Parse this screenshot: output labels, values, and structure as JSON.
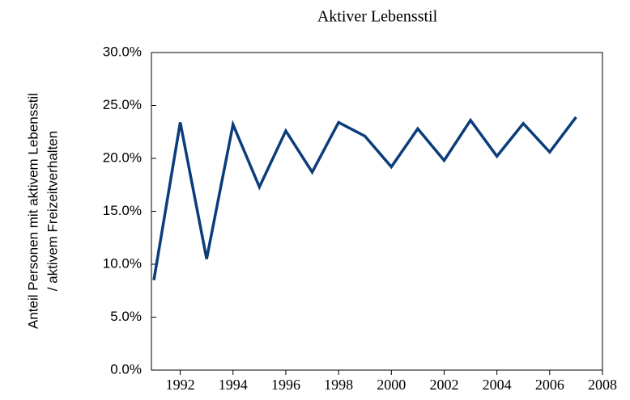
{
  "chart_data": {
    "type": "line",
    "title": "Aktiver Lebensstil",
    "ylabel": [
      "Anteil Personen mit aktivem Lebensstil",
      "/ aktivem Freizeitverhalten"
    ],
    "x": [
      1991,
      1992,
      1993,
      1994,
      1995,
      1996,
      1997,
      1998,
      1999,
      2000,
      2001,
      2002,
      2003,
      2004,
      2005,
      2006,
      2007
    ],
    "series": [
      {
        "color": "#0b3d7a",
        "values": [
          8.5,
          23.4,
          10.5,
          23.2,
          17.3,
          22.6,
          18.7,
          23.4,
          22.1,
          19.2,
          22.8,
          19.8,
          23.6,
          20.2,
          23.3,
          20.6,
          23.9
        ]
      }
    ],
    "xlim": [
      1991,
      2008
    ],
    "xticks": [
      1992,
      1994,
      1996,
      1998,
      2000,
      2002,
      2004,
      2006,
      2008
    ],
    "ylim": [
      0,
      30
    ],
    "yticks": [
      {
        "value": 0,
        "label": "0.0%"
      },
      {
        "value": 5,
        "label": "5.0%"
      },
      {
        "value": 10,
        "label": "10.0%"
      },
      {
        "value": 15,
        "label": "15.0%"
      },
      {
        "value": 20,
        "label": "20.0%"
      },
      {
        "value": 25,
        "label": "25.0%"
      },
      {
        "value": 30,
        "label": "30.0%"
      }
    ],
    "grid": false
  }
}
